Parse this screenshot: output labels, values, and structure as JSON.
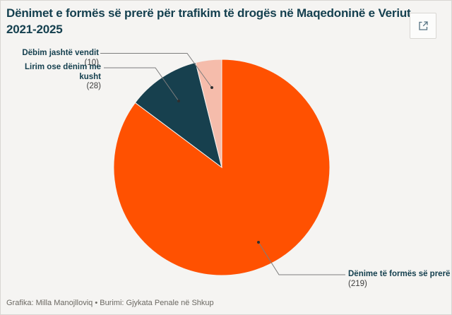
{
  "title": "Dënimet e formës së prerë për trafikim të drogës në Maqedoninë e Veriut, 2021-2025",
  "toolbar": {
    "open_icon": "external-link"
  },
  "annotations": [
    {
      "label": "Dëbim jashtë vendit",
      "count": "(10)"
    },
    {
      "label": "Lirim ose dënim me kusht",
      "count": "(28)"
    },
    {
      "label": "Dënime të formës së prerë",
      "count": "(219)"
    }
  ],
  "footer": {
    "credit": "Grafika: Milla Manojlloviq • Burimi: Gjykata Penale në Shkup"
  },
  "colors": {
    "background": "#f5f4f2",
    "accent_navy": "#15404f",
    "connector_gray": "#7d7d7d"
  },
  "chart_data": {
    "type": "pie",
    "title": "Dënimet e formës së prerë për trafikim të drogës në Maqedoninë e Veriut, 2021-2025",
    "slices": [
      {
        "label": "Dënime të formës së prerë",
        "value": 219,
        "color": "#ff5101"
      },
      {
        "label": "Lirim ose dënim me kusht",
        "value": 28,
        "color": "#17404e"
      },
      {
        "label": "Dëbim jashtë vendit",
        "value": 10,
        "color": "#f5bcab"
      }
    ],
    "total": 257,
    "start_angle_deg": 0,
    "direction": "clockwise",
    "legend_position": "callout-labels"
  }
}
